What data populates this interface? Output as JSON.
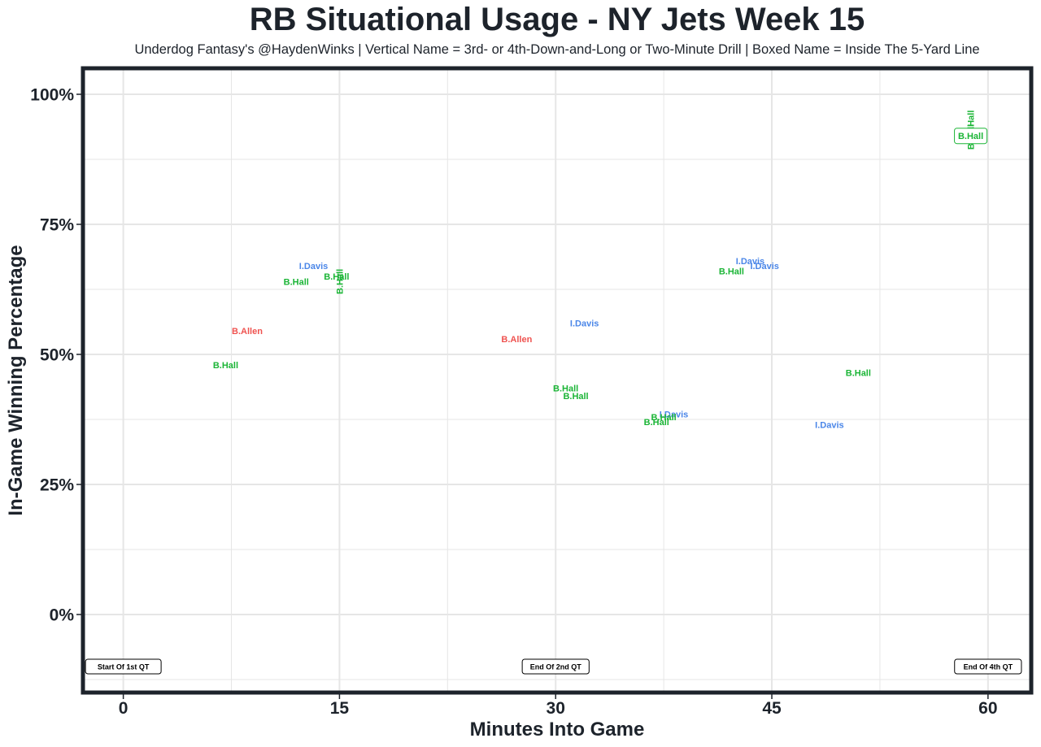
{
  "title": "RB Situational Usage - NY Jets Week 15",
  "subtitle": "Underdog Fantasy's @HaydenWinks | Vertical Name = 3rd- or 4th-Down-and-Long or Two-Minute Drill | Boxed Name = Inside The 5-Yard Line",
  "colors": {
    "B.Hall": "#1bb536",
    "I.Davis": "#4a86e8",
    "B.Allen": "#ef5350",
    "frame": "#1d232b",
    "grid": "#e6e6e6"
  },
  "chart_data": {
    "type": "scatter",
    "title": "RB Situational Usage - NY Jets Week 15",
    "xlabel": "Minutes Into Game",
    "ylabel": "In-Game Winning Percentage",
    "xlim": [
      -2.8,
      63
    ],
    "ylim": [
      -15,
      105
    ],
    "xticks": [
      0,
      15,
      30,
      45,
      60
    ],
    "xtick_labels": [
      "0",
      "15",
      "30",
      "45",
      "60"
    ],
    "yticks": [
      0,
      25,
      50,
      75,
      100
    ],
    "ytick_labels": [
      "0%",
      "25%",
      "50%",
      "75%",
      "100%"
    ],
    "grid": true,
    "points": [
      {
        "player": "I.Davis",
        "x": 13.2,
        "y": 67.0,
        "style": "normal"
      },
      {
        "player": "B.Hall",
        "x": 12.0,
        "y": 64.0,
        "style": "normal"
      },
      {
        "player": "B.Hall",
        "x": 14.8,
        "y": 65.0,
        "style": "normal"
      },
      {
        "player": "B.Hall",
        "x": 15.0,
        "y": 64.0,
        "style": "vertical"
      },
      {
        "player": "B.Allen",
        "x": 8.6,
        "y": 54.5,
        "style": "normal"
      },
      {
        "player": "B.Hall",
        "x": 7.1,
        "y": 48.0,
        "style": "normal"
      },
      {
        "player": "B.Allen",
        "x": 27.3,
        "y": 53.0,
        "style": "normal"
      },
      {
        "player": "I.Davis",
        "x": 32.0,
        "y": 56.0,
        "style": "normal"
      },
      {
        "player": "B.Hall",
        "x": 30.7,
        "y": 43.5,
        "style": "normal"
      },
      {
        "player": "B.Hall",
        "x": 31.4,
        "y": 42.0,
        "style": "normal"
      },
      {
        "player": "I.Davis",
        "x": 43.5,
        "y": 68.0,
        "style": "normal"
      },
      {
        "player": "I.Davis",
        "x": 44.5,
        "y": 67.0,
        "style": "normal"
      },
      {
        "player": "B.Hall",
        "x": 42.2,
        "y": 66.0,
        "style": "normal"
      },
      {
        "player": "I.Davis",
        "x": 38.2,
        "y": 38.5,
        "style": "normal"
      },
      {
        "player": "B.Hall",
        "x": 37.5,
        "y": 38.0,
        "style": "normal"
      },
      {
        "player": "B.Hall",
        "x": 37.0,
        "y": 37.0,
        "style": "normal"
      },
      {
        "player": "I.Davis",
        "x": 49.0,
        "y": 36.5,
        "style": "normal"
      },
      {
        "player": "B.Hall",
        "x": 51.0,
        "y": 46.5,
        "style": "normal"
      },
      {
        "player": "B.Hall",
        "x": 58.8,
        "y": 91.8,
        "style": "vertical"
      },
      {
        "player": "B.Hall",
        "x": 58.8,
        "y": 94.5,
        "style": "vertical"
      },
      {
        "player": "B.Hall",
        "x": 58.8,
        "y": 92.0,
        "style": "boxed"
      }
    ],
    "annotations": [
      {
        "label": "Start Of 1st QT",
        "x": 0,
        "y": -10
      },
      {
        "label": "End Of 2nd QT",
        "x": 30,
        "y": -10
      },
      {
        "label": "End Of 4th QT",
        "x": 60,
        "y": -10
      }
    ]
  }
}
